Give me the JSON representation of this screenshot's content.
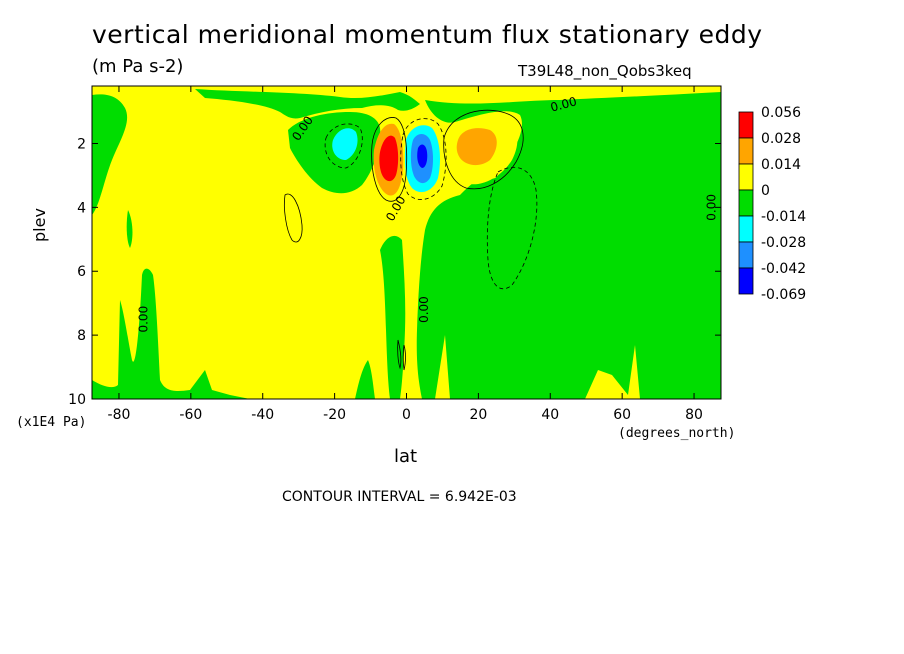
{
  "chart_data": {
    "type": "heatmap",
    "title": "vertical meridional momentum flux stationary eddy",
    "units": "(m Pa s-2)",
    "run_id": "T39L48_non_Qobs3keq",
    "xlabel": "lat",
    "xunit": "(degrees_north)",
    "ylabel": "plev",
    "yunit": "(x1E4 Pa)",
    "x_ticks": [
      "-80",
      "-60",
      "-40",
      "-20",
      "0",
      "20",
      "40",
      "60",
      "80"
    ],
    "x_tick_values": [
      -80,
      -60,
      -40,
      -20,
      0,
      20,
      40,
      60,
      80
    ],
    "y_ticks": [
      "2",
      "4",
      "6",
      "8",
      "10"
    ],
    "y_tick_values": [
      2,
      4,
      6,
      8,
      10
    ],
    "xlim": [
      -87.5,
      87.5
    ],
    "ylim": [
      10,
      0.2
    ],
    "contour_interval": "CONTOUR INTERVAL = 6.942E-03",
    "contour_labels": [
      {
        "text": "0.00",
        "lat": -28,
        "plev": 1.6,
        "angle": -55
      },
      {
        "text": "0.00",
        "lat": 44,
        "plev": 0.9,
        "angle": -15
      },
      {
        "text": "0.00",
        "lat": -72,
        "plev": 7.5,
        "angle": -90
      },
      {
        "text": "0.00",
        "lat": 6,
        "plev": 7.2,
        "angle": -90
      },
      {
        "text": "0.00",
        "lat": -2,
        "plev": 4.1,
        "angle": -60
      },
      {
        "text": "0.00",
        "lat": 86,
        "plev": 4.0,
        "angle": -90
      }
    ],
    "colorbar": {
      "levels": [
        "0.056",
        "0.028",
        "0.014",
        "0",
        "-0.014",
        "-0.028",
        "-0.042",
        "-0.069"
      ],
      "colors": [
        "#ff0000",
        "#ffa500",
        "#ffff00",
        "#00dd00",
        "#00ffff",
        "#1e90ff",
        "#0000ff"
      ]
    },
    "regions": [
      {
        "name": "positive-max",
        "center_lat": -4,
        "center_plev": 2.3,
        "value": 0.056
      },
      {
        "name": "negative-min",
        "center_lat": 5,
        "center_plev": 2.3,
        "value": -0.069
      },
      {
        "name": "positive-nh",
        "center_lat": 20,
        "center_plev": 2.0,
        "value": 0.028
      },
      {
        "name": "negative-sh",
        "center_lat": -16,
        "center_plev": 2.0,
        "value": -0.028
      }
    ]
  }
}
